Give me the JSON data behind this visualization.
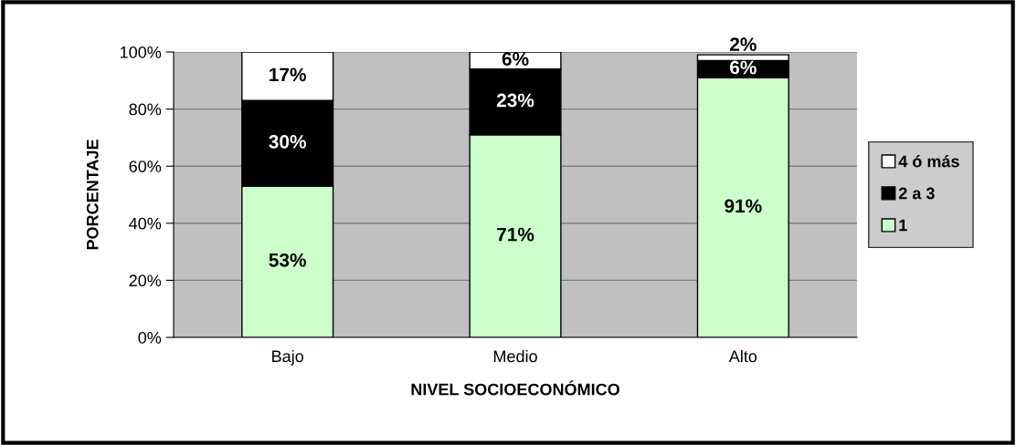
{
  "chart_data": {
    "type": "bar",
    "stacked": true,
    "xlabel": "NIVEL SOCIOECONÓMICO",
    "ylabel": "PORCENTAJE",
    "categories": [
      "Bajo",
      "Medio",
      "Alto"
    ],
    "series": [
      {
        "name": "1",
        "color": "#ccffcc",
        "values": [
          53,
          71,
          91
        ],
        "value_labels": [
          "53%",
          "71%",
          "91%"
        ]
      },
      {
        "name": "2 a 3",
        "color": "#000000",
        "values": [
          30,
          23,
          6
        ],
        "value_labels": [
          "30%",
          "23%",
          "6%"
        ]
      },
      {
        "name": "4 ó más",
        "color": "#ffffff",
        "values": [
          17,
          6,
          2
        ],
        "value_labels": [
          "17%",
          "6%",
          "2%"
        ]
      }
    ],
    "ylim": [
      0,
      100
    ],
    "yticks": [
      {
        "value": 0,
        "label": "0%"
      },
      {
        "value": 20,
        "label": "20%"
      },
      {
        "value": 40,
        "label": "40%"
      },
      {
        "value": 60,
        "label": "60%"
      },
      {
        "value": 80,
        "label": "80%"
      },
      {
        "value": 100,
        "label": "100%"
      }
    ],
    "grid": "y",
    "legend": "right"
  }
}
